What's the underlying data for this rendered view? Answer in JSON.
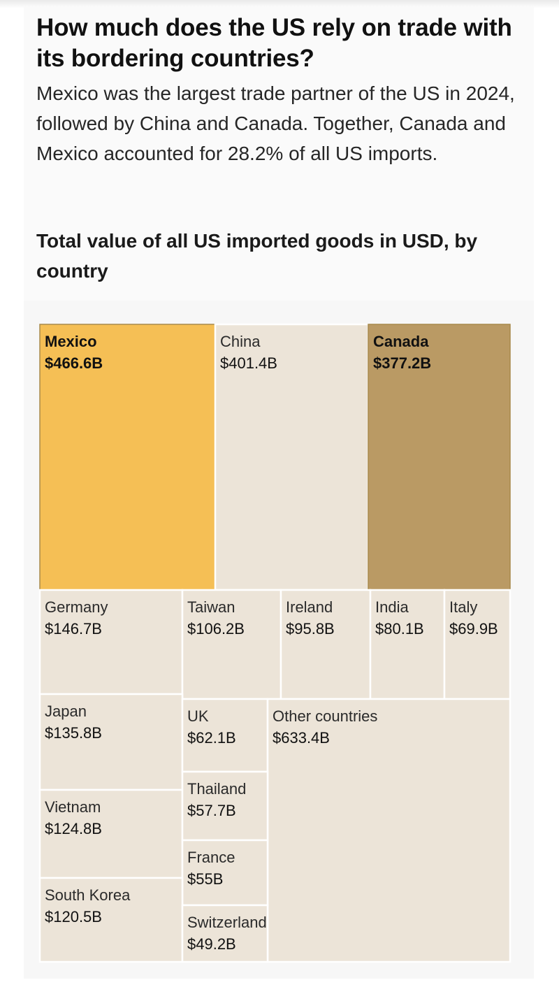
{
  "headline": "How much does the US rely on trade with its bordering countries?",
  "dek": "Mexico was the largest trade partner of the US in 2024, followed by China and Canada. Together, Canada and Mexico accounted for 28.2% of all US imports.",
  "chart_data": {
    "type": "treemap",
    "title": "Total value of all US imported goods in USD, by country",
    "unit": "USD billions",
    "items": [
      {
        "name": "Mexico",
        "label": "$466.6B",
        "value": 466.6,
        "color": "#f5bf55",
        "highlight": true
      },
      {
        "name": "China",
        "label": "$401.4B",
        "value": 401.4,
        "color": "#ece4d8",
        "highlight": false
      },
      {
        "name": "Canada",
        "label": "$377.2B",
        "value": 377.2,
        "color": "#ba9a64",
        "highlight": true
      },
      {
        "name": "Germany",
        "label": "$146.7B",
        "value": 146.7,
        "color": "#ece4d8",
        "highlight": false
      },
      {
        "name": "Taiwan",
        "label": "$106.2B",
        "value": 106.2,
        "color": "#ece4d8",
        "highlight": false
      },
      {
        "name": "Ireland",
        "label": "$95.8B",
        "value": 95.8,
        "color": "#ece4d8",
        "highlight": false
      },
      {
        "name": "India",
        "label": "$80.1B",
        "value": 80.1,
        "color": "#ece4d8",
        "highlight": false
      },
      {
        "name": "Italy",
        "label": "$69.9B",
        "value": 69.9,
        "color": "#ece4d8",
        "highlight": false
      },
      {
        "name": "Japan",
        "label": "$135.8B",
        "value": 135.8,
        "color": "#ece4d8",
        "highlight": false
      },
      {
        "name": "UK",
        "label": "$62.1B",
        "value": 62.1,
        "color": "#ece4d8",
        "highlight": false
      },
      {
        "name": "Other countries",
        "label": "$633.4B",
        "value": 633.4,
        "color": "#ece4d8",
        "highlight": false
      },
      {
        "name": "Vietnam",
        "label": "$124.8B",
        "value": 124.8,
        "color": "#ece4d8",
        "highlight": false
      },
      {
        "name": "Thailand",
        "label": "$57.7B",
        "value": 57.7,
        "color": "#ece4d8",
        "highlight": false
      },
      {
        "name": "France",
        "label": "$55B",
        "value": 55,
        "color": "#ece4d8",
        "highlight": false
      },
      {
        "name": "South Korea",
        "label": "$120.5B",
        "value": 120.5,
        "color": "#ece4d8",
        "highlight": false
      },
      {
        "name": "Switzerland",
        "label": "$49.2B",
        "value": 49.2,
        "color": "#ece4d8",
        "highlight": false
      }
    ]
  }
}
